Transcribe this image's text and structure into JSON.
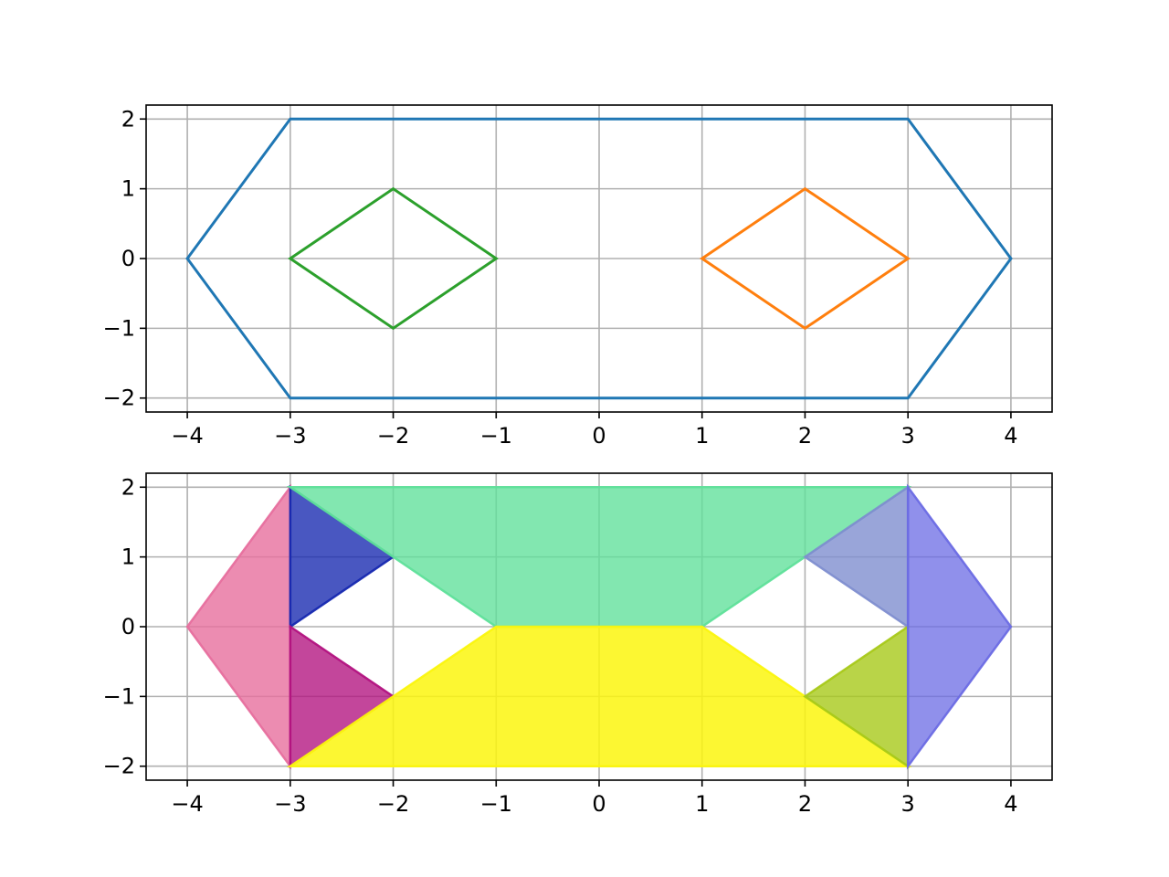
{
  "chart_data": [
    {
      "type": "line",
      "title": "",
      "xlabel": "",
      "ylabel": "",
      "xlim": [
        -4.4,
        4.4
      ],
      "ylim": [
        -2.2,
        2.2
      ],
      "xticks": [
        -4,
        -3,
        -2,
        -1,
        0,
        1,
        2,
        3,
        4
      ],
      "yticks": [
        -2,
        -1,
        0,
        1,
        2
      ],
      "xtick_labels": [
        "−4",
        "−3",
        "−2",
        "−1",
        "0",
        "1",
        "2",
        "3",
        "4"
      ],
      "ytick_labels": [
        "−2",
        "−1",
        "0",
        "1",
        "2"
      ],
      "grid": true,
      "legend": "none",
      "series": [
        {
          "color": "#1f77b4",
          "closed": true,
          "x": [
            -4,
            -3,
            3,
            4,
            3,
            -3
          ],
          "y": [
            0,
            2,
            2,
            0,
            -2,
            -2
          ]
        },
        {
          "color": "#ff7f0e",
          "closed": true,
          "x": [
            1,
            2,
            3,
            2
          ],
          "y": [
            0,
            1,
            0,
            -1
          ]
        },
        {
          "color": "#2ca02c",
          "closed": true,
          "x": [
            -3,
            -2,
            -1,
            -2
          ],
          "y": [
            0,
            1,
            0,
            -1
          ]
        }
      ]
    },
    {
      "type": "area",
      "title": "",
      "xlabel": "",
      "ylabel": "",
      "xlim": [
        -4.4,
        4.4
      ],
      "ylim": [
        -2.2,
        2.2
      ],
      "xticks": [
        -4,
        -3,
        -2,
        -1,
        0,
        1,
        2,
        3,
        4
      ],
      "yticks": [
        -2,
        -1,
        0,
        1,
        2
      ],
      "xtick_labels": [
        "−4",
        "−3",
        "−2",
        "−1",
        "0",
        "1",
        "2",
        "3",
        "4"
      ],
      "ytick_labels": [
        "−2",
        "−1",
        "0",
        "1",
        "2"
      ],
      "grid": true,
      "legend": "none",
      "polygons": [
        {
          "color": "#e76f9e",
          "alpha": 0.8,
          "x": [
            -4,
            -3,
            -3
          ],
          "y": [
            0,
            2,
            -2
          ]
        },
        {
          "color": "#1628b0",
          "alpha": 0.78,
          "x": [
            -3,
            -2,
            -3
          ],
          "y": [
            2,
            1,
            0
          ]
        },
        {
          "color": "#b2127f",
          "alpha": 0.78,
          "x": [
            -3,
            -2,
            -3
          ],
          "y": [
            0,
            -1,
            -2
          ]
        },
        {
          "color": "#5fe09a",
          "alpha": 0.78,
          "x": [
            -3,
            3,
            2,
            1,
            -1,
            -2
          ],
          "y": [
            2,
            2,
            1,
            0,
            0,
            1
          ]
        },
        {
          "color": "#fbf60e",
          "alpha": 0.85,
          "x": [
            -1,
            1,
            2,
            3,
            -3,
            -2
          ],
          "y": [
            0,
            0,
            -1,
            -2,
            -2,
            -1
          ]
        },
        {
          "color": "#7f8ed0",
          "alpha": 0.8,
          "x": [
            2,
            3,
            3
          ],
          "y": [
            1,
            2,
            0
          ]
        },
        {
          "color": "#a8c91a",
          "alpha": 0.8,
          "x": [
            2,
            3,
            3
          ],
          "y": [
            -1,
            0,
            -2
          ]
        },
        {
          "color": "#6b6be4",
          "alpha": 0.75,
          "x": [
            3,
            4,
            3
          ],
          "y": [
            2,
            0,
            -2
          ]
        }
      ]
    }
  ]
}
